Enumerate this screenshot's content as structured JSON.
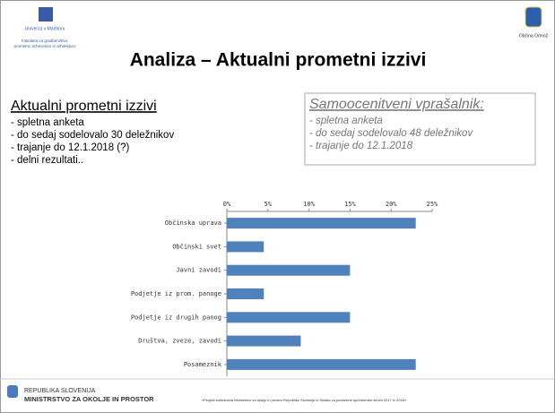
{
  "header": {
    "logo_left": [
      "Univerza v Mariboru",
      "Fakulteta za gradbeništvo,",
      "prometno inženirstvo in arhitekturo"
    ],
    "title": "Analiza – Aktualni prometni izzivi",
    "logo_right": "Občina Ormož"
  },
  "left": {
    "heading": "Aktualni prometni izzivi",
    "items": [
      "- spletna anketa",
      "- do sedaj sodelovalo 30 deležnikov",
      "- trajanje do 12.1.2018 (?)",
      "- delni rezultati.."
    ]
  },
  "right": {
    "heading": "Samoocenitveni vprašalnik:",
    "items": [
      "- spletna anketa",
      "- do sedaj sodelovalo 48 deležnikov",
      "- trajanje do 12.1.2018"
    ]
  },
  "chart_data": {
    "type": "hbar",
    "categories": [
      "Občinska uprava",
      "Občinski svet",
      "Javni zavodi",
      "Podjetje iz prom. panoge",
      "Podjetje iz drugih panog",
      "Društva, zveze, zavodi",
      "Posameznik"
    ],
    "values": [
      23,
      4.5,
      15,
      4.5,
      15,
      9,
      23
    ],
    "color": "#4f81bd",
    "xlim": [
      0,
      25
    ],
    "xticks": [
      {
        "value": 0,
        "label": "0%"
      },
      {
        "value": 5,
        "label": "5%"
      },
      {
        "value": 10,
        "label": "10%"
      },
      {
        "value": 15,
        "label": "15%"
      },
      {
        "value": 20,
        "label": "20%"
      },
      {
        "value": 25,
        "label": "25%"
      }
    ]
  },
  "footer": {
    "ministry": [
      "REPUBLIKA SLOVENIJA",
      "MINISTRSTVO ZA OKOLJE IN PROSTOR"
    ],
    "note": "»Projekt sofinancira Ministrstvo za okolje in prostor Republike Slovenije iz Sklada za podnebne spremembe za leti 2017 in 2018«"
  }
}
